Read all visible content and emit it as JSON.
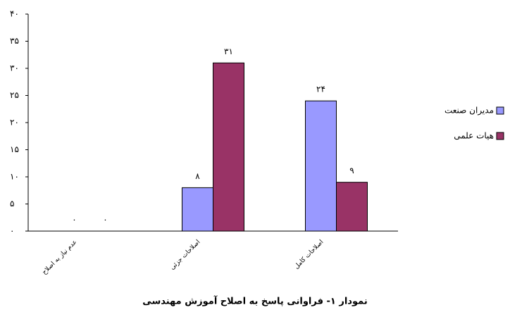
{
  "chart_data": {
    "type": "bar",
    "title": "نمودار ۱- فراوانی پاسخ به اصلاح آموزش مهندسی",
    "categories": [
      "عدم نیاز به اصلاح",
      "اصلاحات جزئی",
      "اصلاحات کامل"
    ],
    "series": [
      {
        "name": "مدیران صنعت",
        "color": "#9999ff",
        "values": [
          0,
          8,
          24
        ],
        "value_labels": [
          "۰",
          "۸",
          "۲۴"
        ]
      },
      {
        "name": "هیات علمی",
        "color": "#993366",
        "values": [
          0,
          31,
          9
        ],
        "value_labels": [
          "۰",
          "۳۱",
          "۹"
        ]
      }
    ],
    "ylim": [
      0,
      40
    ],
    "yticks": [
      {
        "value": 0,
        "label": "۰"
      },
      {
        "value": 5,
        "label": "۵"
      },
      {
        "value": 10,
        "label": "۱۰"
      },
      {
        "value": 15,
        "label": "۱۵"
      },
      {
        "value": 20,
        "label": "۲۰"
      },
      {
        "value": 25,
        "label": "۲۵"
      },
      {
        "value": 30,
        "label": "۳۰"
      },
      {
        "value": 35,
        "label": "۳۵"
      },
      {
        "value": 40,
        "label": "۴۰"
      }
    ],
    "grid": false,
    "legend": "right"
  }
}
